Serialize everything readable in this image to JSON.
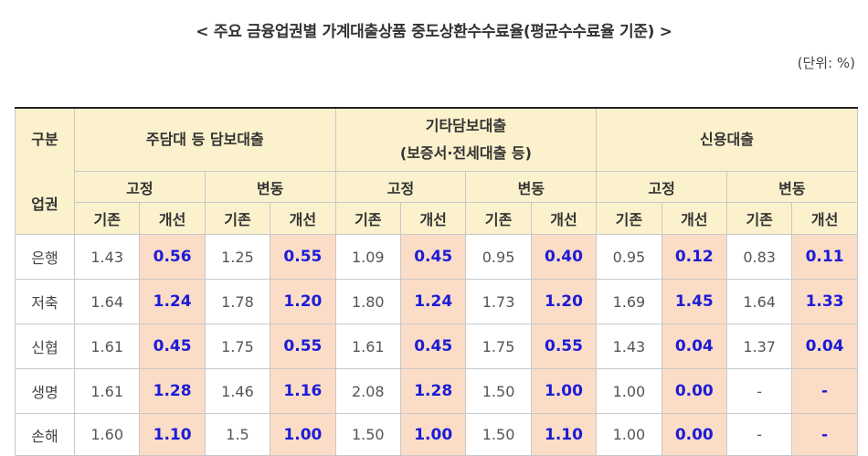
{
  "title": "< 주요 금융업권별 가계대출상품 중도상환수수료율(평균수수료율 기준) >",
  "unit": "(단위: %)",
  "header": {
    "category": "구분",
    "sector_label": "업권",
    "groups": [
      {
        "line1": "주담대 등 담보대출",
        "line2": ""
      },
      {
        "line1": "기타담보대출",
        "line2": "(보증서·전세대출 등)"
      },
      {
        "line1": "신용대출",
        "line2": ""
      }
    ],
    "rate_types": [
      "고정",
      "변동"
    ],
    "columns": [
      "기존",
      "개선"
    ]
  },
  "rows": [
    {
      "sector": "은행",
      "values": [
        "1.43",
        "0.56",
        "1.25",
        "0.55",
        "1.09",
        "0.45",
        "0.95",
        "0.40",
        "0.95",
        "0.12",
        "0.83",
        "0.11"
      ]
    },
    {
      "sector": "저축",
      "values": [
        "1.64",
        "1.24",
        "1.78",
        "1.20",
        "1.80",
        "1.24",
        "1.73",
        "1.20",
        "1.69",
        "1.45",
        "1.64",
        "1.33"
      ]
    },
    {
      "sector": "신협",
      "values": [
        "1.61",
        "0.45",
        "1.75",
        "0.55",
        "1.61",
        "0.45",
        "1.75",
        "0.55",
        "1.43",
        "0.04",
        "1.37",
        "0.04"
      ]
    },
    {
      "sector": "생명",
      "values": [
        "1.61",
        "1.28",
        "1.46",
        "1.16",
        "2.08",
        "1.28",
        "1.50",
        "1.00",
        "1.00",
        "0.00",
        "-",
        "-"
      ]
    },
    {
      "sector": "손해",
      "values": [
        "1.60",
        "1.10",
        "1.5",
        "1.00",
        "1.50",
        "1.00",
        "1.50",
        "1.10",
        "1.00",
        "0.00",
        "-",
        "-"
      ]
    }
  ],
  "colors": {
    "header_bg": "#fbf1cc",
    "improved_bg": "#fbdcc6",
    "improved_text": "#1c1cd6"
  }
}
